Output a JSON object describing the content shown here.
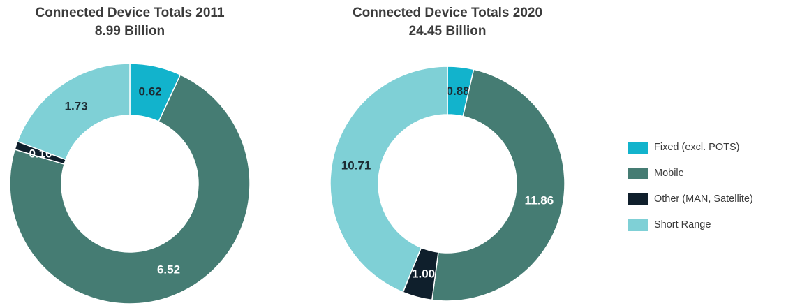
{
  "chart_data": [
    {
      "type": "pie",
      "title": "Connected Device Totals 2011",
      "subtitle": "8.99 Billion",
      "categories": [
        "Fixed (excl. POTS)",
        "Mobile",
        "Other (MAN, Satellite)",
        "Short Range"
      ],
      "values": [
        0.62,
        6.52,
        0.1,
        1.73
      ],
      "labels": [
        "0.62",
        "6.52",
        "0.10",
        "1.73"
      ],
      "hole": "donut"
    },
    {
      "type": "pie",
      "title": "Connected Device Totals 2020",
      "subtitle": "24.45 Billion",
      "categories": [
        "Fixed (excl. POTS)",
        "Mobile",
        "Other (MAN, Satellite)",
        "Short Range"
      ],
      "values": [
        0.88,
        11.86,
        1.0,
        10.71
      ],
      "labels": [
        "0.88",
        "11.86",
        "1.00",
        "10.71"
      ],
      "hole": "donut"
    }
  ],
  "legend": {
    "items": [
      {
        "label": "Fixed (excl. POTS)",
        "color": "#12b3cc"
      },
      {
        "label": "Mobile",
        "color": "#457c73"
      },
      {
        "label": "Other (MAN, Satellite)",
        "color": "#0f1f2c"
      },
      {
        "label": "Short Range",
        "color": "#7fd0d6"
      }
    ]
  },
  "label_colors": [
    "#1c2b33",
    "#ffffff",
    "#ffffff",
    "#1c2b33"
  ]
}
